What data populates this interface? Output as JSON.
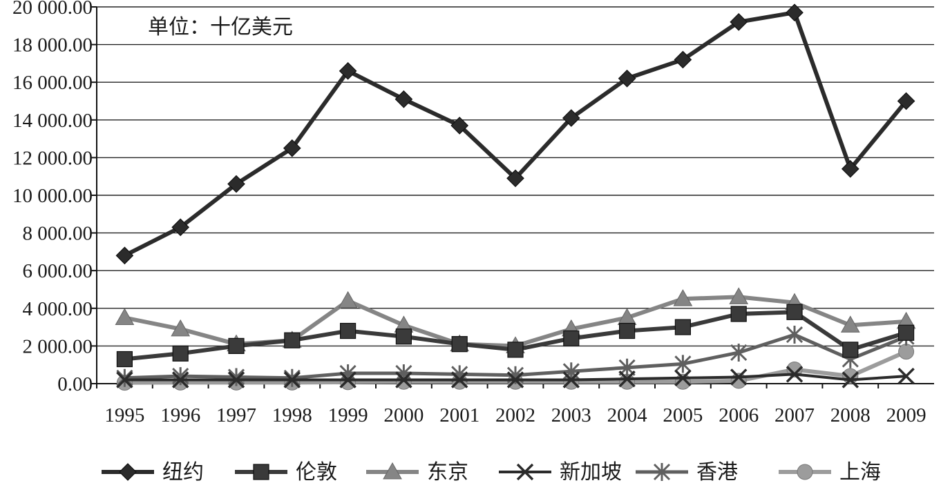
{
  "chart_data": {
    "type": "line",
    "unit_label": "单位：十亿美元",
    "categories": [
      "1995",
      "1996",
      "1997",
      "1998",
      "1999",
      "2000",
      "2001",
      "2002",
      "2003",
      "2004",
      "2005",
      "2006",
      "2007",
      "2008",
      "2009"
    ],
    "y_ticks": [
      "0.00",
      "2 000.00",
      "4 000.00",
      "6 000.00",
      "8 000.00",
      "10 000.00",
      "12 000.00",
      "14 000.00",
      "16 000.00",
      "18 000.00",
      "20 000.00"
    ],
    "ylim": [
      0,
      20000
    ],
    "grid": true,
    "legend_position": "bottom",
    "series": [
      {
        "name": "纽约",
        "marker": "diamond",
        "color": "#2b2b2b",
        "width": 6,
        "values": [
          6800,
          8300,
          10600,
          12500,
          16600,
          15100,
          13700,
          10900,
          14100,
          16200,
          17200,
          19200,
          19700,
          11400,
          15000
        ]
      },
      {
        "name": "伦敦",
        "marker": "square",
        "color": "#3a3a3a",
        "width": 6,
        "values": [
          1300,
          1600,
          2000,
          2300,
          2800,
          2500,
          2100,
          1800,
          2400,
          2800,
          3000,
          3700,
          3800,
          1800,
          2700
        ]
      },
      {
        "name": "东京",
        "marker": "triangle",
        "color": "#858585",
        "width": 6,
        "values": [
          3500,
          2900,
          2100,
          2300,
          4400,
          3100,
          2100,
          2000,
          2900,
          3500,
          4500,
          4600,
          4300,
          3100,
          3300
        ]
      },
      {
        "name": "新加坡",
        "marker": "x",
        "color": "#2b2b2b",
        "width": 4,
        "values": [
          200,
          200,
          200,
          200,
          200,
          200,
          200,
          200,
          200,
          250,
          300,
          350,
          500,
          200,
          400
        ]
      },
      {
        "name": "香港",
        "marker": "star",
        "color": "#5f5f5f",
        "width": 5,
        "values": [
          300,
          400,
          350,
          300,
          550,
          550,
          500,
          450,
          650,
          850,
          1050,
          1650,
          2600,
          1300,
          2500
        ]
      },
      {
        "name": "上海",
        "marker": "circle",
        "color": "#9c9c9c",
        "width": 6,
        "values": [
          50,
          60,
          60,
          60,
          80,
          100,
          100,
          100,
          100,
          100,
          100,
          150,
          750,
          400,
          1700
        ]
      }
    ]
  }
}
